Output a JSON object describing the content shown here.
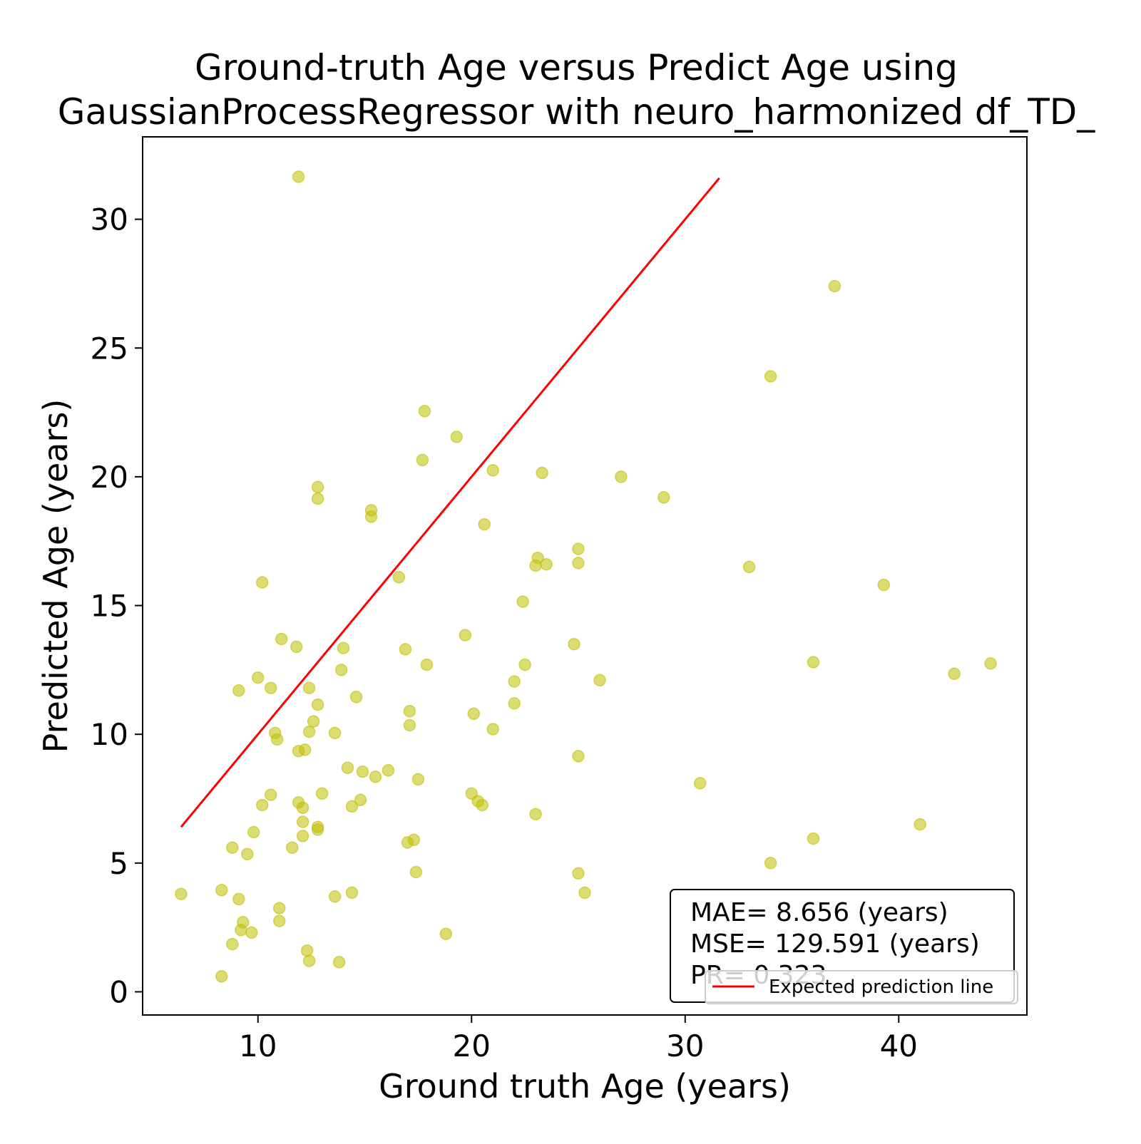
{
  "chart_data": {
    "type": "scatter",
    "title": "Ground-truth Age versus Predict Age using\nGaussianProcessRegressor  with neuro_harmonized df_TD_",
    "xlabel": "Ground truth Age (years)",
    "ylabel": "Predicted Age (years)",
    "xlim": [
      4.6,
      46.0
    ],
    "ylim": [
      -0.9,
      33.2
    ],
    "xticks": [
      10,
      20,
      30,
      40
    ],
    "yticks": [
      0,
      5,
      10,
      15,
      20,
      25,
      30
    ],
    "grid": false,
    "point_color": "#bfbf00",
    "line_color": "#ff0000",
    "expected_line": {
      "name": "Expected prediction line",
      "x": [
        6.4,
        31.6
      ],
      "y": [
        6.4,
        31.6
      ]
    },
    "legend": {
      "position": "bottom-right",
      "entries": [
        "Expected prediction line"
      ]
    },
    "annotation": {
      "lines": [
        "MAE= 8.656 (years)",
        "MSE= 129.591 (years)",
        "PR= 0.323"
      ],
      "position": "bottom-right"
    },
    "points": [
      {
        "x": 6.4,
        "y": 3.8
      },
      {
        "x": 8.3,
        "y": 0.6
      },
      {
        "x": 8.3,
        "y": 3.95
      },
      {
        "x": 8.8,
        "y": 5.6
      },
      {
        "x": 8.8,
        "y": 1.85
      },
      {
        "x": 9.1,
        "y": 3.6
      },
      {
        "x": 9.1,
        "y": 11.7
      },
      {
        "x": 9.2,
        "y": 2.4
      },
      {
        "x": 9.3,
        "y": 2.7
      },
      {
        "x": 9.5,
        "y": 5.35
      },
      {
        "x": 9.7,
        "y": 2.3
      },
      {
        "x": 9.8,
        "y": 6.2
      },
      {
        "x": 10.0,
        "y": 12.2
      },
      {
        "x": 10.2,
        "y": 7.25
      },
      {
        "x": 10.2,
        "y": 15.9
      },
      {
        "x": 10.6,
        "y": 7.65
      },
      {
        "x": 10.6,
        "y": 11.8
      },
      {
        "x": 10.8,
        "y": 10.05
      },
      {
        "x": 10.9,
        "y": 9.8
      },
      {
        "x": 11.0,
        "y": 3.25
      },
      {
        "x": 11.0,
        "y": 2.75
      },
      {
        "x": 11.1,
        "y": 13.7
      },
      {
        "x": 11.6,
        "y": 5.6
      },
      {
        "x": 11.8,
        "y": 13.4
      },
      {
        "x": 11.9,
        "y": 31.65
      },
      {
        "x": 11.9,
        "y": 7.35
      },
      {
        "x": 11.9,
        "y": 9.35
      },
      {
        "x": 12.1,
        "y": 7.15
      },
      {
        "x": 12.1,
        "y": 6.05
      },
      {
        "x": 12.1,
        "y": 6.6
      },
      {
        "x": 12.2,
        "y": 9.4
      },
      {
        "x": 12.3,
        "y": 1.6
      },
      {
        "x": 12.4,
        "y": 1.2
      },
      {
        "x": 12.4,
        "y": 11.8
      },
      {
        "x": 12.4,
        "y": 10.1
      },
      {
        "x": 12.6,
        "y": 10.5
      },
      {
        "x": 12.8,
        "y": 19.6
      },
      {
        "x": 12.8,
        "y": 19.15
      },
      {
        "x": 12.8,
        "y": 11.15
      },
      {
        "x": 12.8,
        "y": 6.4
      },
      {
        "x": 12.8,
        "y": 6.3
      },
      {
        "x": 13.0,
        "y": 7.7
      },
      {
        "x": 13.6,
        "y": 10.05
      },
      {
        "x": 13.6,
        "y": 3.7
      },
      {
        "x": 13.8,
        "y": 1.15
      },
      {
        "x": 13.9,
        "y": 12.5
      },
      {
        "x": 14.0,
        "y": 13.35
      },
      {
        "x": 14.2,
        "y": 8.7
      },
      {
        "x": 14.4,
        "y": 7.2
      },
      {
        "x": 14.4,
        "y": 3.85
      },
      {
        "x": 14.6,
        "y": 11.45
      },
      {
        "x": 14.8,
        "y": 7.45
      },
      {
        "x": 14.9,
        "y": 8.55
      },
      {
        "x": 15.3,
        "y": 18.7
      },
      {
        "x": 15.3,
        "y": 18.45
      },
      {
        "x": 15.5,
        "y": 8.35
      },
      {
        "x": 16.1,
        "y": 8.6
      },
      {
        "x": 16.6,
        "y": 16.1
      },
      {
        "x": 16.9,
        "y": 13.3
      },
      {
        "x": 17.0,
        "y": 5.8
      },
      {
        "x": 17.1,
        "y": 10.9
      },
      {
        "x": 17.1,
        "y": 10.35
      },
      {
        "x": 17.3,
        "y": 5.9
      },
      {
        "x": 17.4,
        "y": 4.65
      },
      {
        "x": 17.5,
        "y": 8.25
      },
      {
        "x": 17.7,
        "y": 20.65
      },
      {
        "x": 17.8,
        "y": 22.55
      },
      {
        "x": 17.9,
        "y": 12.7
      },
      {
        "x": 18.8,
        "y": 2.25
      },
      {
        "x": 19.3,
        "y": 21.55
      },
      {
        "x": 19.7,
        "y": 13.85
      },
      {
        "x": 20.0,
        "y": 7.7
      },
      {
        "x": 20.1,
        "y": 10.8
      },
      {
        "x": 20.3,
        "y": 7.4
      },
      {
        "x": 20.5,
        "y": 7.25
      },
      {
        "x": 20.6,
        "y": 18.15
      },
      {
        "x": 21.0,
        "y": 20.25
      },
      {
        "x": 21.0,
        "y": 10.2
      },
      {
        "x": 22.0,
        "y": 12.05
      },
      {
        "x": 22.0,
        "y": 11.2
      },
      {
        "x": 22.4,
        "y": 15.15
      },
      {
        "x": 22.5,
        "y": 12.7
      },
      {
        "x": 23.0,
        "y": 6.9
      },
      {
        "x": 23.0,
        "y": 16.55
      },
      {
        "x": 23.1,
        "y": 16.85
      },
      {
        "x": 23.3,
        "y": 20.15
      },
      {
        "x": 23.5,
        "y": 16.6
      },
      {
        "x": 24.8,
        "y": 13.5
      },
      {
        "x": 25.0,
        "y": 17.2
      },
      {
        "x": 25.0,
        "y": 16.65
      },
      {
        "x": 25.0,
        "y": 9.15
      },
      {
        "x": 25.0,
        "y": 4.6
      },
      {
        "x": 25.3,
        "y": 3.85
      },
      {
        "x": 26.0,
        "y": 12.1
      },
      {
        "x": 27.0,
        "y": 20.0
      },
      {
        "x": 29.0,
        "y": 19.2
      },
      {
        "x": 30.7,
        "y": 8.1
      },
      {
        "x": 33.0,
        "y": 16.5
      },
      {
        "x": 34.0,
        "y": 5.0
      },
      {
        "x": 34.0,
        "y": 23.9
      },
      {
        "x": 36.0,
        "y": 12.8
      },
      {
        "x": 36.0,
        "y": 5.95
      },
      {
        "x": 37.0,
        "y": 27.4
      },
      {
        "x": 39.3,
        "y": 15.8
      },
      {
        "x": 41.0,
        "y": 6.5
      },
      {
        "x": 42.6,
        "y": 12.35
      },
      {
        "x": 44.3,
        "y": 12.75
      }
    ]
  }
}
